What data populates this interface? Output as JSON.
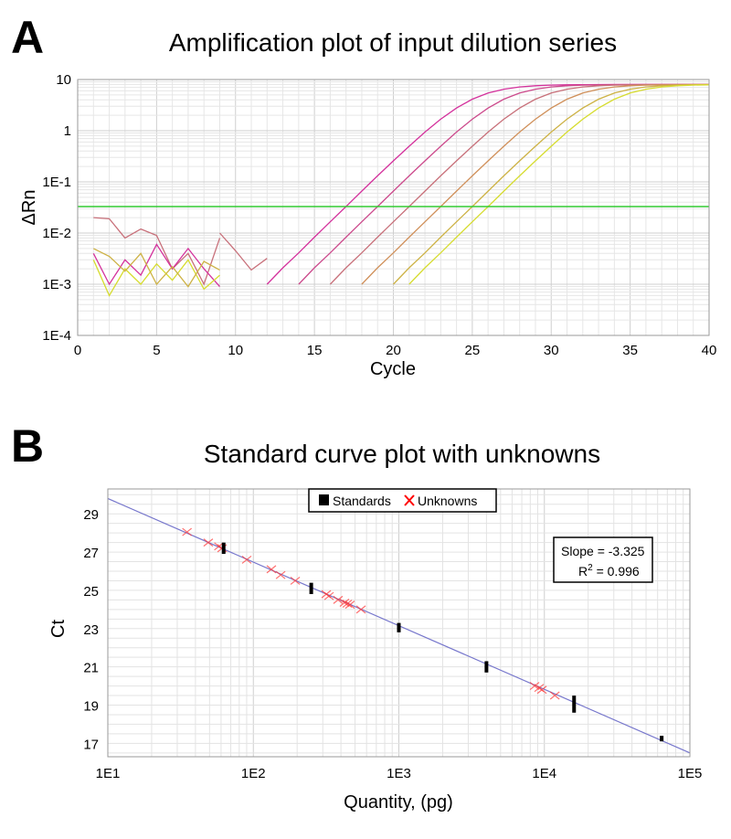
{
  "chart_data": [
    {
      "type": "line",
      "panel_label": "A",
      "title": "Amplification plot of input dilution series",
      "xlabel": "Cycle",
      "ylabel": "ΔRn",
      "xlim": [
        0,
        40
      ],
      "ylim": [
        0.0001,
        10
      ],
      "yscale": "log",
      "grid": true,
      "x_ticks": [
        "0",
        "5",
        "10",
        "15",
        "20",
        "25",
        "30",
        "35",
        "40"
      ],
      "y_ticks": [
        "1E-4",
        "1E-3",
        "1E-2",
        "1E-1",
        "1",
        "10"
      ],
      "threshold": {
        "value": 0.033,
        "color": "#33cc33"
      },
      "series": [
        {
          "color": "#d4319c",
          "x_start": 12,
          "values": [
            0.001,
            0.0021,
            0.0041,
            0.0083,
            0.0166,
            0.033,
            0.066,
            0.131,
            0.257,
            0.498,
            0.94,
            1.68,
            2.77,
            4.13,
            5.44,
            6.48,
            7.16,
            7.55,
            7.77,
            7.88,
            7.94,
            7.97,
            8,
            8,
            8,
            8,
            8,
            8,
            8
          ]
        },
        {
          "color": "#cc4a8c",
          "x_start": 14,
          "values": [
            0.001,
            0.0021,
            0.0041,
            0.0083,
            0.0166,
            0.033,
            0.066,
            0.131,
            0.257,
            0.498,
            0.94,
            1.68,
            2.77,
            4.13,
            5.44,
            6.48,
            7.16,
            7.55,
            7.77,
            7.88,
            7.94,
            7.97,
            8,
            8,
            8,
            8,
            8
          ]
        },
        {
          "color": "#c8707a",
          "x_start": 16,
          "values": [
            0.001,
            0.0021,
            0.0041,
            0.0083,
            0.0166,
            0.033,
            0.066,
            0.131,
            0.257,
            0.498,
            0.94,
            1.68,
            2.77,
            4.13,
            5.44,
            6.48,
            7.16,
            7.55,
            7.77,
            7.88,
            7.94,
            7.97,
            8,
            8,
            8
          ]
        },
        {
          "color": "#d0905a",
          "x_start": 18,
          "values": [
            0.001,
            0.0021,
            0.0041,
            0.0083,
            0.0166,
            0.033,
            0.066,
            0.131,
            0.257,
            0.498,
            0.94,
            1.68,
            2.77,
            4.13,
            5.44,
            6.48,
            7.16,
            7.55,
            7.77,
            7.88,
            7.94,
            7.97,
            8
          ]
        },
        {
          "color": "#cdb245",
          "x_start": 20,
          "values": [
            0.001,
            0.0021,
            0.0041,
            0.0083,
            0.0166,
            0.033,
            0.066,
            0.131,
            0.257,
            0.498,
            0.94,
            1.68,
            2.77,
            4.13,
            5.44,
            6.48,
            7.16,
            7.55,
            7.77,
            7.88,
            7.94
          ]
        },
        {
          "color": "#d6dc30",
          "x_start": 21,
          "values": [
            0.001,
            0.0021,
            0.0041,
            0.0083,
            0.0166,
            0.033,
            0.066,
            0.131,
            0.257,
            0.498,
            0.94,
            1.68,
            2.77,
            4.13,
            5.44,
            6.48,
            7.16,
            7.55,
            7.77,
            7.88
          ]
        },
        {
          "color": "#c8707a",
          "x_start": 1,
          "values": [
            0.02,
            0.019,
            0.008,
            0.012,
            0.009,
            0.002,
            0.004,
            0.001,
            0.008
          ]
        },
        {
          "color": "#d4319c",
          "x_start": 1,
          "values": [
            0.004,
            0.001,
            0.003,
            0.0015,
            0.006,
            0.002,
            0.005,
            0.002,
            0.0009
          ]
        },
        {
          "color": "#d6dc30",
          "x_start": 1,
          "values": [
            0.003,
            0.0006,
            0.002,
            0.001,
            0.0025,
            0.0012,
            0.003,
            0.0008,
            0.0015
          ]
        },
        {
          "color": "#cdb245",
          "x_start": 1,
          "values": [
            0.005,
            0.0035,
            0.0018,
            0.004,
            0.001,
            0.0022,
            0.0009,
            0.0028,
            0.0019
          ]
        },
        {
          "color": "#c8707a",
          "x_start": 9,
          "values": [
            0.01,
            0.0045,
            0.0019,
            0.0032
          ]
        }
      ]
    },
    {
      "type": "scatter",
      "panel_label": "B",
      "title": "Standard curve plot with unknowns",
      "xlabel": "Quantity, (pg)",
      "ylabel": "Ct",
      "xscale": "log",
      "xlim": [
        10,
        100000
      ],
      "ylim": [
        16.3,
        30.3
      ],
      "grid": true,
      "x_ticks": [
        "1E1",
        "1E2",
        "1E3",
        "1E4",
        "1E5"
      ],
      "y_ticks": [
        "17",
        "19",
        "21",
        "23",
        "25",
        "27",
        "29"
      ],
      "legend": {
        "position": "top",
        "items": [
          {
            "label": "Standards",
            "color": "#000000"
          },
          {
            "label": "Unknowns",
            "color": "#ff0000"
          }
        ]
      },
      "fit": {
        "slope": -3.325,
        "intercept_ct_at_1E1": 29.8,
        "color": "#7777cc"
      },
      "stats": {
        "slope_text": "Slope = -3.325",
        "r2_label": "R",
        "r2_sup": "2",
        "r2_value": " = 0.996"
      },
      "standards": [
        {
          "quantity": 62.5,
          "ct": [
            27.0,
            27.4
          ]
        },
        {
          "quantity": 250,
          "ct": [
            24.9,
            25.3
          ]
        },
        {
          "quantity": 1000,
          "ct": [
            22.9,
            23.2
          ]
        },
        {
          "quantity": 4000,
          "ct": [
            20.8,
            21.2
          ]
        },
        {
          "quantity": 16000,
          "ct": [
            18.7,
            19.4
          ]
        },
        {
          "quantity": 64000,
          "ct": [
            17.2,
            17.3
          ]
        }
      ],
      "unknowns": [
        {
          "quantity": 35,
          "ct": 28.05
        },
        {
          "quantity": 49,
          "ct": 27.5
        },
        {
          "quantity": 58,
          "ct": 27.3
        },
        {
          "quantity": 61,
          "ct": 27.2
        },
        {
          "quantity": 90,
          "ct": 26.6
        },
        {
          "quantity": 133,
          "ct": 26.1
        },
        {
          "quantity": 154,
          "ct": 25.8
        },
        {
          "quantity": 194,
          "ct": 25.5
        },
        {
          "quantity": 317,
          "ct": 24.8
        },
        {
          "quantity": 331,
          "ct": 24.7
        },
        {
          "quantity": 382,
          "ct": 24.5
        },
        {
          "quantity": 423,
          "ct": 24.35
        },
        {
          "quantity": 442,
          "ct": 24.3
        },
        {
          "quantity": 461,
          "ct": 24.25
        },
        {
          "quantity": 549,
          "ct": 24.0
        },
        {
          "quantity": 8570,
          "ct": 20.0
        },
        {
          "quantity": 9200,
          "ct": 19.9
        },
        {
          "quantity": 9620,
          "ct": 19.8
        },
        {
          "quantity": 11800,
          "ct": 19.5
        }
      ]
    }
  ]
}
